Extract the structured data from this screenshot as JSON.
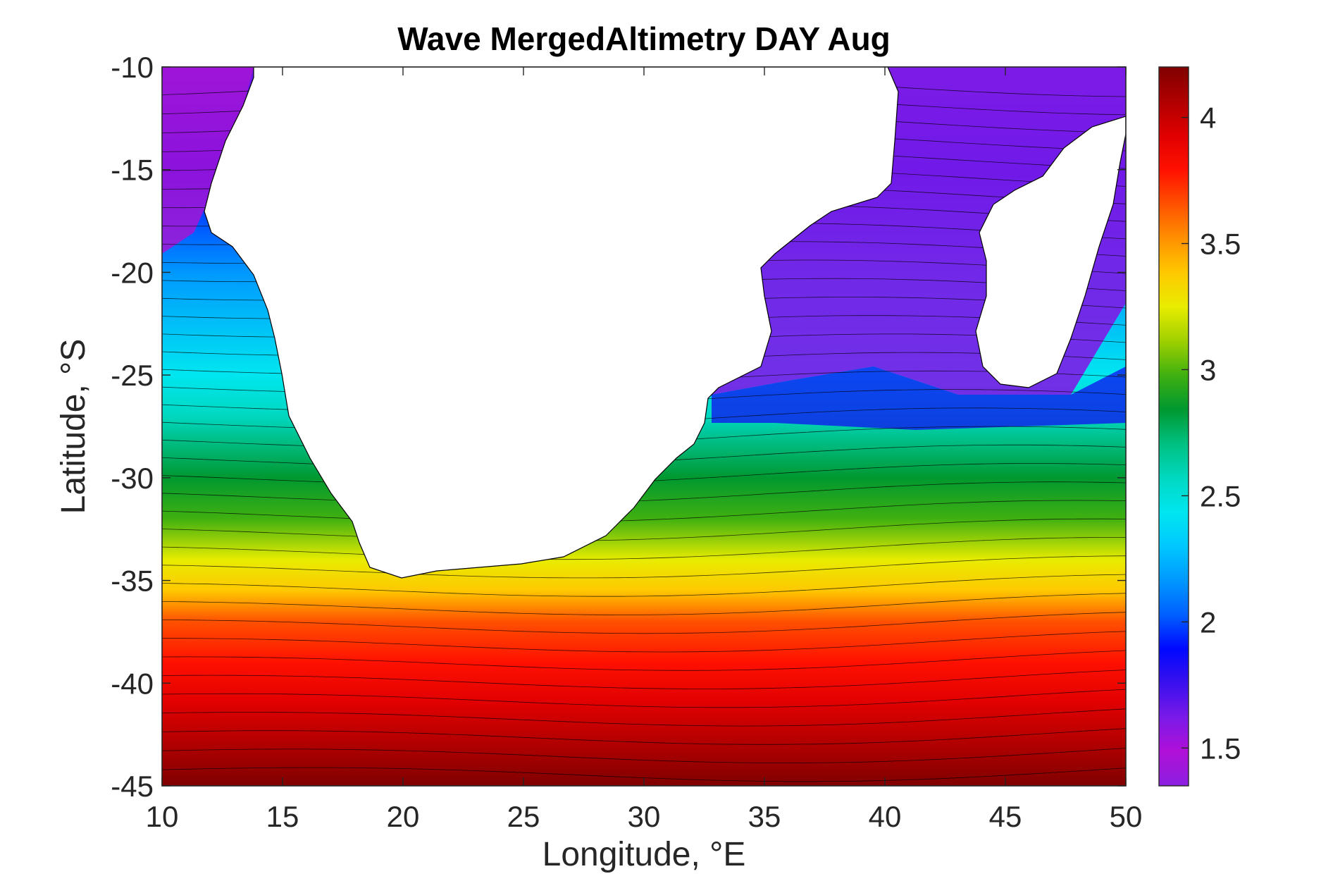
{
  "chart_data": {
    "type": "heatmap",
    "title": "Wave MergedAltimetry DAY Aug",
    "xlabel": "Longitude, °E",
    "ylabel": "Latitude, °S",
    "xlim": [
      10,
      50
    ],
    "ylim": [
      -45,
      -10
    ],
    "xticks": [
      10,
      15,
      20,
      25,
      30,
      35,
      40,
      45,
      50
    ],
    "yticks": [
      -10,
      -15,
      -20,
      -25,
      -30,
      -35,
      -40,
      -45
    ],
    "colorbar": {
      "range": [
        1.35,
        4.2
      ],
      "ticks": [
        1.5,
        2,
        2.5,
        3,
        3.5,
        4
      ],
      "colormap": [
        "#8b20e0",
        "#b010d8",
        "#7a1ae8",
        "#3a10ee",
        "#0008ff",
        "#0060ff",
        "#0098ff",
        "#00c8ff",
        "#00e6f0",
        "#00d8c0",
        "#00c080",
        "#009830",
        "#40b010",
        "#a0d000",
        "#e8ec00",
        "#ffc800",
        "#ff9000",
        "#ff5000",
        "#ff1000",
        "#e00000",
        "#b00000",
        "#800000"
      ]
    },
    "mask": "white = land (Africa, Madagascar)",
    "field_description": "wave height field: ~1.5–2.0 in north (Mozambique Channel, Angola coast), increasing southward to ~4.2 near 45°S",
    "profile_zonal_mean": [
      {
        "lat": -10,
        "value": 1.6
      },
      {
        "lat": -15,
        "value": 1.9
      },
      {
        "lat": -20,
        "value": 2.1
      },
      {
        "lat": -25,
        "value": 2.4
      },
      {
        "lat": -27,
        "value": 2.55
      },
      {
        "lat": -30,
        "value": 2.8
      },
      {
        "lat": -32,
        "value": 2.95
      },
      {
        "lat": -34,
        "value": 3.2
      },
      {
        "lat": -35.5,
        "value": 3.4
      },
      {
        "lat": -37,
        "value": 3.65
      },
      {
        "lat": -39,
        "value": 3.85
      },
      {
        "lat": -41,
        "value": 3.95
      },
      {
        "lat": -43,
        "value": 4.05
      },
      {
        "lat": -45,
        "value": 4.15
      }
    ]
  }
}
